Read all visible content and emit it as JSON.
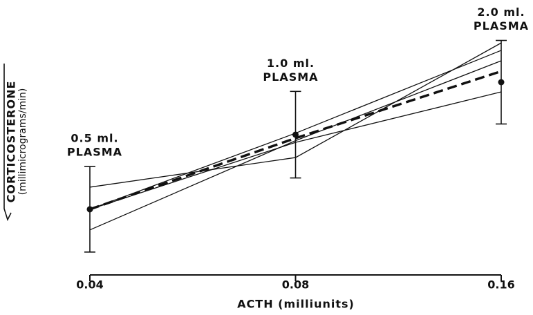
{
  "chart_data": {
    "type": "line",
    "xlabel": "ACTH (milliunits)",
    "ylabel": [
      "CORTICOSTERONE",
      "(millimicrograms/min)"
    ],
    "x": [
      0.04,
      0.08,
      0.16
    ],
    "xscale": "log",
    "xlim": [
      0.04,
      0.16
    ],
    "xticks": [
      0.04,
      0.08,
      0.16
    ],
    "ylim": [
      0,
      10
    ],
    "annotations": [
      [
        "0.5 ml.",
        "PLASMA"
      ],
      [
        "1.0 ml.",
        "PLASMA"
      ],
      [
        "2.0 ml.",
        "PLASMA"
      ]
    ],
    "series": [
      {
        "color": "#111111",
        "values": [
          3.53,
          4.72,
          9.33
        ]
      },
      {
        "color": "#111111",
        "values": [
          2.64,
          5.33,
          7.36
        ]
      },
      {
        "color": "#111111",
        "values": [
          2.64,
          5.7,
          9.03
        ]
      },
      {
        "color": "#111111",
        "values": [
          1.81,
          5.4,
          8.61
        ]
      },
      {
        "color": "#111111",
        "dashed": true,
        "values": [
          2.64,
          5.5,
          8.19
        ]
      }
    ],
    "means": {
      "color": "#111111",
      "values": [
        2.64,
        5.64,
        7.75
      ],
      "errors": [
        1.72,
        1.74,
        1.68
      ]
    }
  }
}
